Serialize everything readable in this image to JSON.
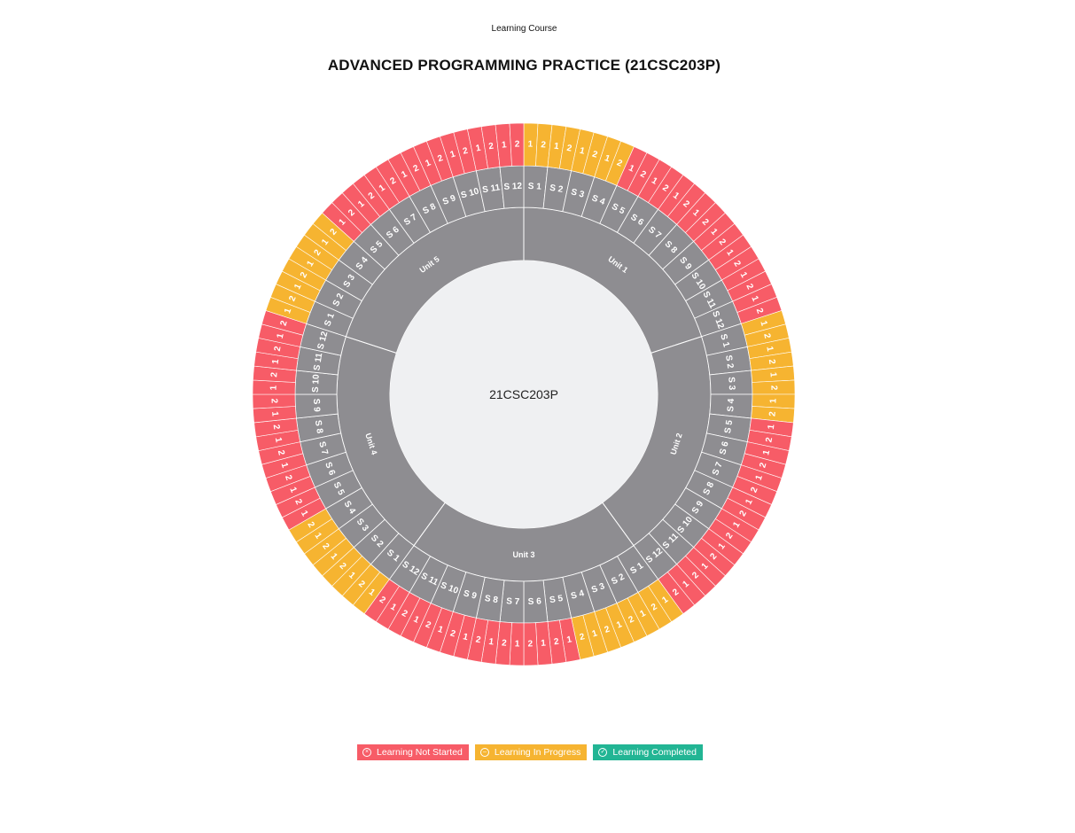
{
  "header": {
    "subtitle": "Learning Course",
    "title": "ADVANCED PROGRAMMING PRACTICE (21CSC203P)"
  },
  "colors": {
    "not_started": "#f75c67",
    "in_progress": "#f6b431",
    "completed": "#22b594",
    "ring": "#8e8d91",
    "center": "#eff0f2"
  },
  "legend": [
    {
      "label": "Learning Not Started",
      "status": "not_started",
      "icon": "circle-x-icon"
    },
    {
      "label": "Learning In Progress",
      "status": "in_progress",
      "icon": "circle-dash-icon"
    },
    {
      "label": "Learning Completed",
      "status": "completed",
      "icon": "circle-check-icon"
    }
  ],
  "chart_data": {
    "type": "sunburst",
    "center_label": "21CSC203P",
    "units": [
      {
        "name": "Unit 1",
        "sessions": [
          {
            "label": "S 1",
            "parts": [
              "1",
              "2"
            ],
            "status": "in_progress"
          },
          {
            "label": "S 2",
            "parts": [
              "1",
              "2"
            ],
            "status": "in_progress"
          },
          {
            "label": "S 3",
            "parts": [
              "1",
              "2"
            ],
            "status": "in_progress"
          },
          {
            "label": "S 4",
            "parts": [
              "1",
              "2"
            ],
            "status": "in_progress"
          },
          {
            "label": "S 5",
            "parts": [
              "1",
              "2"
            ],
            "status": "not_started"
          },
          {
            "label": "S 6",
            "parts": [
              "1",
              "2"
            ],
            "status": "not_started"
          },
          {
            "label": "S 7",
            "parts": [
              "1",
              "2"
            ],
            "status": "not_started"
          },
          {
            "label": "S 8",
            "parts": [
              "1",
              "2"
            ],
            "status": "not_started"
          },
          {
            "label": "S 9",
            "parts": [
              "1",
              "2"
            ],
            "status": "not_started"
          },
          {
            "label": "S 10",
            "parts": [
              "1",
              "2"
            ],
            "status": "not_started"
          },
          {
            "label": "S 11",
            "parts": [
              "1",
              "2"
            ],
            "status": "not_started"
          },
          {
            "label": "S 12",
            "parts": [
              "1",
              "2"
            ],
            "status": "not_started"
          }
        ]
      },
      {
        "name": "Unit 2",
        "sessions": [
          {
            "label": "S 1",
            "parts": [
              "1",
              "2"
            ],
            "status": "in_progress"
          },
          {
            "label": "S 2",
            "parts": [
              "1",
              "2"
            ],
            "status": "in_progress"
          },
          {
            "label": "S 3",
            "parts": [
              "1",
              "2"
            ],
            "status": "in_progress"
          },
          {
            "label": "S 4",
            "parts": [
              "1",
              "2"
            ],
            "status": "in_progress"
          },
          {
            "label": "S 5",
            "parts": [
              "1",
              "2"
            ],
            "status": "not_started"
          },
          {
            "label": "S 6",
            "parts": [
              "1",
              "2"
            ],
            "status": "not_started"
          },
          {
            "label": "S 7",
            "parts": [
              "1",
              "2"
            ],
            "status": "not_started"
          },
          {
            "label": "S 8",
            "parts": [
              "1",
              "2"
            ],
            "status": "not_started"
          },
          {
            "label": "S 9",
            "parts": [
              "1",
              "2"
            ],
            "status": "not_started"
          },
          {
            "label": "S 10",
            "parts": [
              "1",
              "2"
            ],
            "status": "not_started"
          },
          {
            "label": "S 11",
            "parts": [
              "1",
              "2"
            ],
            "status": "not_started"
          },
          {
            "label": "S 12",
            "parts": [
              "1",
              "2"
            ],
            "status": "not_started"
          }
        ]
      },
      {
        "name": "Unit 3",
        "sessions": [
          {
            "label": "S 1",
            "parts": [
              "1",
              "2"
            ],
            "status": "in_progress"
          },
          {
            "label": "S 2",
            "parts": [
              "1",
              "2"
            ],
            "status": "in_progress"
          },
          {
            "label": "S 3",
            "parts": [
              "1",
              "2"
            ],
            "status": "in_progress"
          },
          {
            "label": "S 4",
            "parts": [
              "1",
              "2"
            ],
            "status": "in_progress"
          },
          {
            "label": "S 5",
            "parts": [
              "1",
              "2"
            ],
            "status": "not_started"
          },
          {
            "label": "S 6",
            "parts": [
              "1",
              "2"
            ],
            "status": "not_started"
          },
          {
            "label": "S 7",
            "parts": [
              "1",
              "2"
            ],
            "status": "not_started"
          },
          {
            "label": "S 8",
            "parts": [
              "1",
              "2"
            ],
            "status": "not_started"
          },
          {
            "label": "S 9",
            "parts": [
              "1",
              "2"
            ],
            "status": "not_started"
          },
          {
            "label": "S 10",
            "parts": [
              "1",
              "2"
            ],
            "status": "not_started"
          },
          {
            "label": "S 11",
            "parts": [
              "1",
              "2"
            ],
            "status": "not_started"
          },
          {
            "label": "S 12",
            "parts": [
              "1",
              "2"
            ],
            "status": "not_started"
          }
        ]
      },
      {
        "name": "Unit 4",
        "sessions": [
          {
            "label": "S 1",
            "parts": [
              "1",
              "2"
            ],
            "status": "in_progress"
          },
          {
            "label": "S 2",
            "parts": [
              "1",
              "2"
            ],
            "status": "in_progress"
          },
          {
            "label": "S 3",
            "parts": [
              "1",
              "2"
            ],
            "status": "in_progress"
          },
          {
            "label": "S 4",
            "parts": [
              "1",
              "2"
            ],
            "status": "in_progress"
          },
          {
            "label": "S 5",
            "parts": [
              "1",
              "2"
            ],
            "status": "not_started"
          },
          {
            "label": "S 6",
            "parts": [
              "1",
              "2"
            ],
            "status": "not_started"
          },
          {
            "label": "S 7",
            "parts": [
              "1",
              "2"
            ],
            "status": "not_started"
          },
          {
            "label": "S 8",
            "parts": [
              "1",
              "2"
            ],
            "status": "not_started"
          },
          {
            "label": "S 9",
            "parts": [
              "1",
              "2"
            ],
            "status": "not_started"
          },
          {
            "label": "S 10",
            "parts": [
              "1",
              "2"
            ],
            "status": "not_started"
          },
          {
            "label": "S 11",
            "parts": [
              "1",
              "2"
            ],
            "status": "not_started"
          },
          {
            "label": "S 12",
            "parts": [
              "1",
              "2"
            ],
            "status": "not_started"
          }
        ]
      },
      {
        "name": "Unit 5",
        "sessions": [
          {
            "label": "S 1",
            "parts": [
              "1",
              "2"
            ],
            "status": "in_progress"
          },
          {
            "label": "S 2",
            "parts": [
              "1",
              "2"
            ],
            "status": "in_progress"
          },
          {
            "label": "S 3",
            "parts": [
              "1",
              "2"
            ],
            "status": "in_progress"
          },
          {
            "label": "S 4",
            "parts": [
              "1",
              "2"
            ],
            "status": "in_progress"
          },
          {
            "label": "S 5",
            "parts": [
              "1",
              "2"
            ],
            "status": "not_started"
          },
          {
            "label": "S 6",
            "parts": [
              "1",
              "2"
            ],
            "status": "not_started"
          },
          {
            "label": "S 7",
            "parts": [
              "1",
              "2"
            ],
            "status": "not_started"
          },
          {
            "label": "S 8",
            "parts": [
              "1",
              "2"
            ],
            "status": "not_started"
          },
          {
            "label": "S 9",
            "parts": [
              "1",
              "2"
            ],
            "status": "not_started"
          },
          {
            "label": "S 10",
            "parts": [
              "1",
              "2"
            ],
            "status": "not_started"
          },
          {
            "label": "S 11",
            "parts": [
              "1",
              "2"
            ],
            "status": "not_started"
          },
          {
            "label": "S 12",
            "parts": [
              "1",
              "2"
            ],
            "status": "not_started"
          }
        ]
      }
    ]
  }
}
